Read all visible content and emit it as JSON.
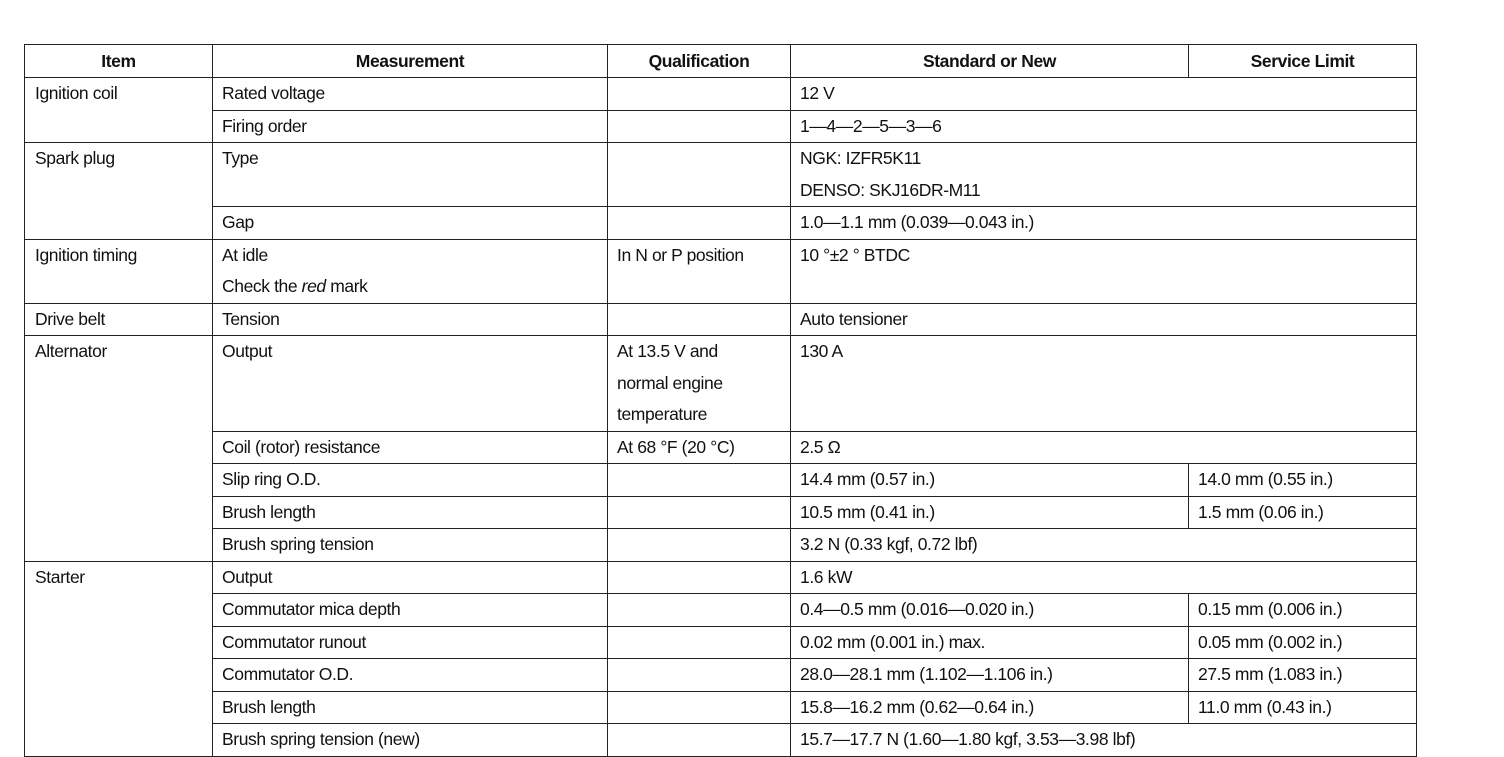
{
  "headers": [
    "Item",
    "Measurement",
    "Qualification",
    "Standard or New",
    "Service Limit"
  ],
  "groups": [
    {
      "item": "Ignition coil",
      "rows": [
        {
          "measurement": [
            "Rated voltage"
          ],
          "qualification": [],
          "standard": [
            "12 V"
          ],
          "limit": null
        },
        {
          "measurement": [
            "Firing order"
          ],
          "qualification": [],
          "standard": [
            "1—4—2—5—3—6"
          ],
          "limit": null
        }
      ]
    },
    {
      "item": "Spark plug",
      "rows": [
        {
          "measurement": [
            "Type"
          ],
          "qualification": [],
          "standard": [
            "NGK: IZFR5K11",
            "DENSO: SKJ16DR-M11"
          ],
          "limit": null
        },
        {
          "measurement": [
            "Gap"
          ],
          "qualification": [],
          "standard": [
            "1.0—1.1 mm (0.039—0.043 in.)"
          ],
          "limit": null
        }
      ]
    },
    {
      "item": "Ignition timing",
      "rows": [
        {
          "measurement": [
            "At idle",
            "Check the red mark"
          ],
          "qualification": [
            "In N or P position"
          ],
          "standard": [
            "10 °±2 ° BTDC"
          ],
          "limit": null
        }
      ]
    },
    {
      "item": "Drive belt",
      "rows": [
        {
          "measurement": [
            "Tension"
          ],
          "qualification": [],
          "standard": [
            "Auto tensioner"
          ],
          "limit": null
        }
      ]
    },
    {
      "item": "Alternator",
      "rows": [
        {
          "measurement": [
            "Output"
          ],
          "qualification": [
            "At 13.5 V and",
            "normal engine",
            "temperature"
          ],
          "standard": [
            "130 A"
          ],
          "limit": null
        },
        {
          "measurement": [
            "Coil (rotor) resistance"
          ],
          "qualification": [
            "At 68 °F (20 °C)"
          ],
          "standard": [
            "2.5 Ω"
          ],
          "limit": null
        },
        {
          "measurement": [
            "Slip ring O.D."
          ],
          "qualification": [],
          "standard": [
            "14.4 mm (0.57 in.)"
          ],
          "limit": "14.0 mm (0.55 in.)"
        },
        {
          "measurement": [
            "Brush length"
          ],
          "qualification": [],
          "standard": [
            "10.5 mm (0.41 in.)"
          ],
          "limit": "1.5 mm (0.06 in.)"
        },
        {
          "measurement": [
            "Brush spring tension"
          ],
          "qualification": [],
          "standard": [
            "3.2 N (0.33 kgf, 0.72 lbf)"
          ],
          "limit": null
        }
      ]
    },
    {
      "item": "Starter",
      "rows": [
        {
          "measurement": [
            "Output"
          ],
          "qualification": [],
          "standard": [
            "1.6 kW"
          ],
          "limit": null
        },
        {
          "measurement": [
            "Commutator mica depth"
          ],
          "qualification": [],
          "standard": [
            "0.4—0.5 mm (0.016—0.020 in.)"
          ],
          "limit": "0.15 mm (0.006 in.)"
        },
        {
          "measurement": [
            "Commutator runout"
          ],
          "qualification": [],
          "standard": [
            "0.02 mm (0.001 in.) max."
          ],
          "limit": "0.05 mm (0.002 in.)"
        },
        {
          "measurement": [
            "Commutator O.D."
          ],
          "qualification": [],
          "standard": [
            "28.0—28.1 mm (1.102—1.106 in.)"
          ],
          "limit": "27.5 mm (1.083 in.)"
        },
        {
          "measurement": [
            "Brush length"
          ],
          "qualification": [],
          "standard": [
            "15.8—16.2 mm (0.62—0.64 in.)"
          ],
          "limit": "11.0 mm (0.43 in.)"
        },
        {
          "measurement": [
            "Brush spring tension (new)"
          ],
          "qualification": [],
          "standard": [
            "15.7—17.7 N (1.60—1.80 kgf, 3.53—3.98 lbf)"
          ],
          "limit": null
        }
      ]
    }
  ]
}
